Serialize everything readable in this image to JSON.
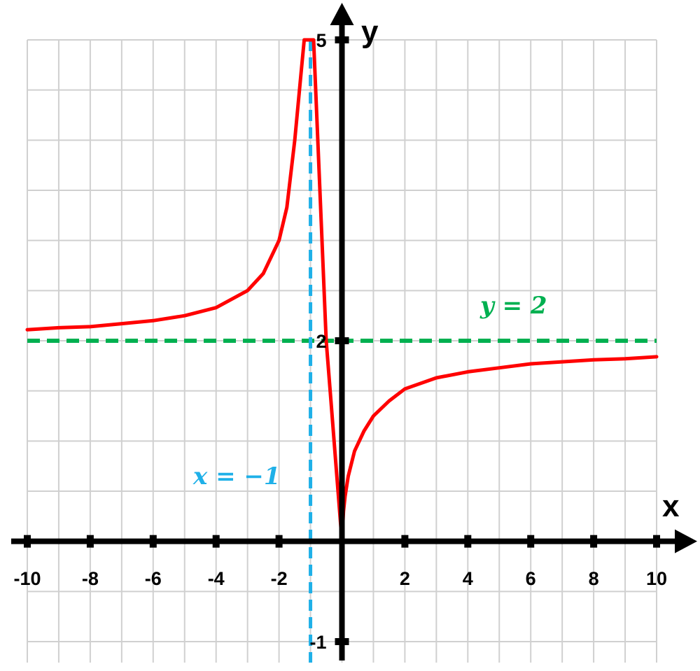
{
  "chart_data": {
    "type": "line",
    "title": "",
    "xlabel": "x",
    "ylabel": "y",
    "xlim": [
      -10,
      10
    ],
    "ylim": [
      -1,
      5
    ],
    "grid": true,
    "x_ticks": [
      -10,
      -8,
      -6,
      -4,
      -2,
      2,
      4,
      6,
      8,
      10
    ],
    "x_tick_labels": [
      "-10",
      "-8",
      "-6",
      "-4",
      "-2",
      "2",
      "4",
      "6",
      "8",
      "10"
    ],
    "y_ticks": [
      5,
      2,
      -1
    ],
    "y_tick_labels": [
      "5",
      "2",
      "-1"
    ],
    "series": [
      {
        "points": [
          [
            -10,
            2.11
          ],
          [
            -9,
            2.13
          ],
          [
            -8,
            2.14
          ],
          [
            -7,
            2.17
          ],
          [
            -6,
            2.2
          ],
          [
            -5,
            2.25
          ],
          [
            -4,
            2.33
          ],
          [
            -3,
            2.5
          ],
          [
            -2.5,
            2.67
          ],
          [
            -2,
            3.0
          ],
          [
            -1.75,
            3.33
          ],
          [
            -1.5,
            4.0
          ],
          [
            -1.3,
            4.67
          ],
          [
            -1.2,
            5.0
          ],
          [
            -0.9,
            5.0
          ],
          [
            -0.5,
            2.0
          ],
          [
            -0.35,
            1.4
          ],
          [
            -0.2,
            0.8
          ],
          [
            -0.05,
            0.2
          ],
          [
            0,
            0
          ],
          [
            0.05,
            0.3
          ],
          [
            0.1,
            0.45
          ],
          [
            0.2,
            0.65
          ],
          [
            0.4,
            0.9
          ],
          [
            0.7,
            1.1
          ],
          [
            1,
            1.25
          ],
          [
            1.5,
            1.4
          ],
          [
            2,
            1.52
          ],
          [
            3,
            1.63
          ],
          [
            4,
            1.69
          ],
          [
            5,
            1.73
          ],
          [
            6,
            1.77
          ],
          [
            7,
            1.79
          ],
          [
            8,
            1.81
          ],
          [
            9,
            1.82
          ],
          [
            10,
            1.84
          ]
        ]
      }
    ],
    "asymptotes": [
      {
        "orientation": "horizontal",
        "value": 2,
        "label": "y = 2"
      },
      {
        "orientation": "vertical",
        "value": -1,
        "label": "x = −1"
      }
    ],
    "colors": {
      "curve": "#ff0000",
      "horizontal_asymptote": "#00b050",
      "vertical_asymptote": "#1fb0e8",
      "grid": "#d0d0d0",
      "axes": "#000000"
    }
  }
}
